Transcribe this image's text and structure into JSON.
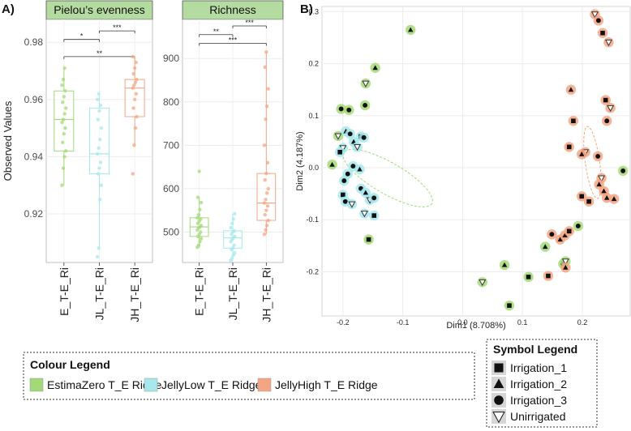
{
  "panel_labels": {
    "a": "A)",
    "b": "B)"
  },
  "colors": {
    "EstimaZero": "#a3d977",
    "JellyLow": "#a6e8ec",
    "JellyHigh": "#f4a582",
    "strip_bg": "#b5dca0"
  },
  "chart_data": [
    {
      "type": "box",
      "title": "Pielou’s evenness",
      "ylabel": "Observed Values",
      "ylim": [
        0.903,
        0.988
      ],
      "yticks": [
        0.92,
        0.94,
        0.96,
        0.98
      ],
      "ytick_labels": [
        "0.92",
        "0.94",
        "0.96",
        "0.98"
      ],
      "categories": [
        "E_T-E_Ri",
        "JL_T-E_Ri",
        "JH_T-E_Ri"
      ],
      "series": [
        {
          "name": "EstimaZero",
          "q1": 0.942,
          "median": 0.953,
          "q3": 0.963,
          "whisker_low": 0.93,
          "whisker_high": 0.971,
          "points": [
            0.93,
            0.936,
            0.94,
            0.942,
            0.945,
            0.948,
            0.95,
            0.952,
            0.953,
            0.955,
            0.957,
            0.959,
            0.961,
            0.963,
            0.965,
            0.967,
            0.971
          ]
        },
        {
          "name": "JellyLow",
          "q1": 0.934,
          "median": 0.941,
          "q3": 0.957,
          "whisker_low": 0.908,
          "whisker_high": 0.962,
          "points": [
            0.905,
            0.908,
            0.925,
            0.93,
            0.934,
            0.936,
            0.938,
            0.941,
            0.943,
            0.946,
            0.95,
            0.953,
            0.956,
            0.958,
            0.96,
            0.962
          ]
        },
        {
          "name": "JellyHigh",
          "q1": 0.954,
          "median": 0.964,
          "q3": 0.967,
          "whisker_low": 0.944,
          "whisker_high": 0.975,
          "points": [
            0.934,
            0.944,
            0.95,
            0.954,
            0.957,
            0.96,
            0.962,
            0.964,
            0.965,
            0.966,
            0.967,
            0.969,
            0.971,
            0.973,
            0.975
          ]
        }
      ],
      "brackets": [
        {
          "from": 0,
          "to": 1,
          "label": "*",
          "level": 0.981
        },
        {
          "from": 1,
          "to": 2,
          "label": "***",
          "level": 0.984
        },
        {
          "from": 0,
          "to": 2,
          "label": "**",
          "level": 0.975
        }
      ]
    },
    {
      "type": "box",
      "title": "Richness",
      "ylim": [
        430,
        990
      ],
      "yticks": [
        500,
        600,
        700,
        800,
        900
      ],
      "ytick_labels": [
        "500",
        "600",
        "700",
        "800",
        "900"
      ],
      "categories": [
        "E_T-E_Ri",
        "JL_T-E_Ri",
        "JH_T-E_Ri"
      ],
      "series": [
        {
          "name": "EstimaZero",
          "q1": 490,
          "median": 512,
          "q3": 533,
          "whisker_low": 465,
          "whisker_high": 580,
          "points": [
            465,
            470,
            478,
            485,
            490,
            495,
            500,
            505,
            510,
            512,
            515,
            520,
            525,
            530,
            533,
            540,
            552,
            568,
            580,
            640
          ]
        },
        {
          "name": "JellyLow",
          "q1": 463,
          "median": 487,
          "q3": 503,
          "whisker_low": 447,
          "whisker_high": 542,
          "points": [
            435,
            440,
            447,
            452,
            460,
            463,
            470,
            478,
            483,
            487,
            490,
            495,
            500,
            503,
            510,
            520,
            530,
            542
          ]
        },
        {
          "name": "JellyHigh",
          "q1": 527,
          "median": 567,
          "q3": 635,
          "whisker_low": 495,
          "whisker_high": 915,
          "points": [
            495,
            505,
            515,
            527,
            540,
            550,
            560,
            567,
            575,
            590,
            600,
            620,
            635,
            660,
            700,
            760,
            790,
            830,
            880,
            915
          ]
        }
      ],
      "brackets": [
        {
          "from": 0,
          "to": 1,
          "label": "**",
          "level": 955
        },
        {
          "from": 1,
          "to": 2,
          "label": "***",
          "level": 975
        },
        {
          "from": 0,
          "to": 2,
          "label": "***",
          "level": 935
        }
      ]
    },
    {
      "type": "scatter",
      "xlabel": "Dim1 (8.708%)",
      "ylabel": "Dim2 (4.187%)",
      "xlim": [
        -0.235,
        0.28
      ],
      "ylim": [
        -0.285,
        0.31
      ],
      "xticks": [
        -0.2,
        -0.1,
        0.0,
        0.1,
        0.2
      ],
      "xtick_labels": [
        "-0.2",
        "-0.1",
        "0.0",
        "0.1",
        "0.2"
      ],
      "yticks": [
        -0.2,
        -0.1,
        0.0,
        0.1,
        0.2,
        0.3
      ],
      "ytick_labels": [
        "-0.2",
        "-0.1",
        "0.0",
        "0.1",
        "0.2",
        "0.3"
      ],
      "shape_codes": {
        "s": "Irrigation_1",
        "t": "Irrigation_2",
        "c": "Irrigation_3",
        "v": "Unirrigated"
      },
      "points": [
        {
          "g": "E",
          "s": "t",
          "x": -0.087,
          "y": 0.265
        },
        {
          "g": "E",
          "s": "t",
          "x": -0.146,
          "y": 0.192
        },
        {
          "g": "E",
          "s": "v",
          "x": -0.162,
          "y": 0.162
        },
        {
          "g": "E",
          "s": "c",
          "x": -0.163,
          "y": 0.12
        },
        {
          "g": "E",
          "s": "c",
          "x": -0.203,
          "y": 0.113
        },
        {
          "g": "E",
          "s": "c",
          "x": -0.19,
          "y": 0.111
        },
        {
          "g": "E",
          "s": "v",
          "x": -0.208,
          "y": 0.061
        },
        {
          "g": "E",
          "s": "t",
          "x": -0.218,
          "y": 0.006
        },
        {
          "g": "E",
          "s": "s",
          "x": -0.157,
          "y": -0.138
        },
        {
          "g": "E",
          "s": "v",
          "x": 0.033,
          "y": -0.22
        },
        {
          "g": "E",
          "s": "t",
          "x": 0.07,
          "y": -0.187
        },
        {
          "g": "E",
          "s": "s",
          "x": 0.078,
          "y": -0.265
        },
        {
          "g": "E",
          "s": "s",
          "x": 0.11,
          "y": -0.21
        },
        {
          "g": "E",
          "s": "t",
          "x": 0.138,
          "y": -0.152
        },
        {
          "g": "E",
          "s": "c",
          "x": 0.168,
          "y": -0.185
        },
        {
          "g": "E",
          "s": "v",
          "x": 0.172,
          "y": -0.18
        },
        {
          "g": "E",
          "s": "c",
          "x": 0.193,
          "y": -0.112
        },
        {
          "g": "E",
          "s": "c",
          "x": 0.268,
          "y": -0.006
        },
        {
          "g": "L",
          "s": "t",
          "x": -0.195,
          "y": 0.07
        },
        {
          "g": "L",
          "s": "c",
          "x": -0.188,
          "y": 0.065
        },
        {
          "g": "L",
          "s": "v",
          "x": -0.2,
          "y": 0.038
        },
        {
          "g": "L",
          "s": "s",
          "x": -0.205,
          "y": 0.03
        },
        {
          "g": "L",
          "s": "t",
          "x": -0.182,
          "y": 0.05
        },
        {
          "g": "L",
          "s": "v",
          "x": -0.176,
          "y": 0.04
        },
        {
          "g": "L",
          "s": "s",
          "x": -0.17,
          "y": 0.06
        },
        {
          "g": "L",
          "s": "c",
          "x": -0.165,
          "y": 0.058
        },
        {
          "g": "L",
          "s": "c",
          "x": -0.183,
          "y": 0.003
        },
        {
          "g": "L",
          "s": "t",
          "x": -0.172,
          "y": -0.003
        },
        {
          "g": "L",
          "s": "c",
          "x": -0.192,
          "y": -0.012
        },
        {
          "g": "L",
          "s": "c",
          "x": -0.198,
          "y": -0.025
        },
        {
          "g": "L",
          "s": "s",
          "x": -0.2,
          "y": -0.052
        },
        {
          "g": "L",
          "s": "c",
          "x": -0.196,
          "y": -0.065
        },
        {
          "g": "L",
          "s": "v",
          "x": -0.185,
          "y": -0.07
        },
        {
          "g": "L",
          "s": "c",
          "x": -0.17,
          "y": -0.04
        },
        {
          "g": "L",
          "s": "t",
          "x": -0.162,
          "y": -0.048
        },
        {
          "g": "L",
          "s": "v",
          "x": -0.155,
          "y": -0.062
        },
        {
          "g": "L",
          "s": "c",
          "x": -0.148,
          "y": -0.058
        },
        {
          "g": "L",
          "s": "v",
          "x": -0.164,
          "y": -0.088
        },
        {
          "g": "L",
          "s": "s",
          "x": -0.148,
          "y": -0.092
        },
        {
          "g": "H",
          "s": "v",
          "x": 0.221,
          "y": 0.295
        },
        {
          "g": "H",
          "s": "c",
          "x": 0.227,
          "y": 0.283
        },
        {
          "g": "H",
          "s": "s",
          "x": 0.234,
          "y": 0.259
        },
        {
          "g": "H",
          "s": "v",
          "x": 0.244,
          "y": 0.241
        },
        {
          "g": "H",
          "s": "t",
          "x": 0.181,
          "y": 0.15
        },
        {
          "g": "H",
          "s": "v",
          "x": 0.247,
          "y": 0.115
        },
        {
          "g": "H",
          "s": "s",
          "x": 0.239,
          "y": 0.13
        },
        {
          "g": "H",
          "s": "s",
          "x": 0.185,
          "y": 0.09
        },
        {
          "g": "H",
          "s": "c",
          "x": 0.241,
          "y": 0.09
        },
        {
          "g": "H",
          "s": "s",
          "x": 0.178,
          "y": 0.04
        },
        {
          "g": "H",
          "s": "v",
          "x": 0.205,
          "y": 0.03
        },
        {
          "g": "H",
          "s": "t",
          "x": 0.199,
          "y": 0.026
        },
        {
          "g": "H",
          "s": "c",
          "x": 0.226,
          "y": 0.022
        },
        {
          "g": "H",
          "s": "v",
          "x": 0.232,
          "y": -0.02
        },
        {
          "g": "H",
          "s": "t",
          "x": 0.228,
          "y": -0.032
        },
        {
          "g": "H",
          "s": "t",
          "x": 0.236,
          "y": -0.045
        },
        {
          "g": "H",
          "s": "s",
          "x": 0.199,
          "y": -0.055
        },
        {
          "g": "H",
          "s": "s",
          "x": 0.211,
          "y": -0.065
        },
        {
          "g": "H",
          "s": "t",
          "x": 0.241,
          "y": -0.058
        },
        {
          "g": "H",
          "s": "t",
          "x": 0.253,
          "y": -0.06
        },
        {
          "g": "H",
          "s": "c",
          "x": 0.149,
          "y": -0.128
        },
        {
          "g": "H",
          "s": "t",
          "x": 0.163,
          "y": -0.138
        },
        {
          "g": "H",
          "s": "t",
          "x": 0.171,
          "y": -0.13
        },
        {
          "g": "H",
          "s": "s",
          "x": 0.178,
          "y": -0.122
        },
        {
          "g": "H",
          "s": "s",
          "x": 0.143,
          "y": -0.208
        },
        {
          "g": "H",
          "s": "t",
          "x": 0.172,
          "y": -0.192
        }
      ],
      "ellipses": [
        {
          "g": "E",
          "cx": -0.125,
          "cy": -0.02,
          "rx": 0.085,
          "ry": 0.03,
          "angle_deg": -30
        },
        {
          "g": "H",
          "cx": 0.217,
          "cy": 0.01,
          "rx": 0.012,
          "ry": 0.07,
          "angle_deg": 8
        }
      ]
    }
  ],
  "legends": {
    "colour": {
      "title": "Colour Legend",
      "items": [
        {
          "key": "EstimaZero",
          "label": "EstimaZero T_E Ridge"
        },
        {
          "key": "JellyLow",
          "label": "JellyLow T_E Ridge"
        },
        {
          "key": "JellyHigh",
          "label": "JellyHigh T_E Ridge"
        }
      ]
    },
    "symbol": {
      "title": "Symbol Legend",
      "items": [
        {
          "shape": "s",
          "label": "Irrigation_1"
        },
        {
          "shape": "t",
          "label": "Irrigation_2"
        },
        {
          "shape": "c",
          "label": "Irrigation_3"
        },
        {
          "shape": "v",
          "label": "Unirrigated"
        }
      ]
    }
  }
}
